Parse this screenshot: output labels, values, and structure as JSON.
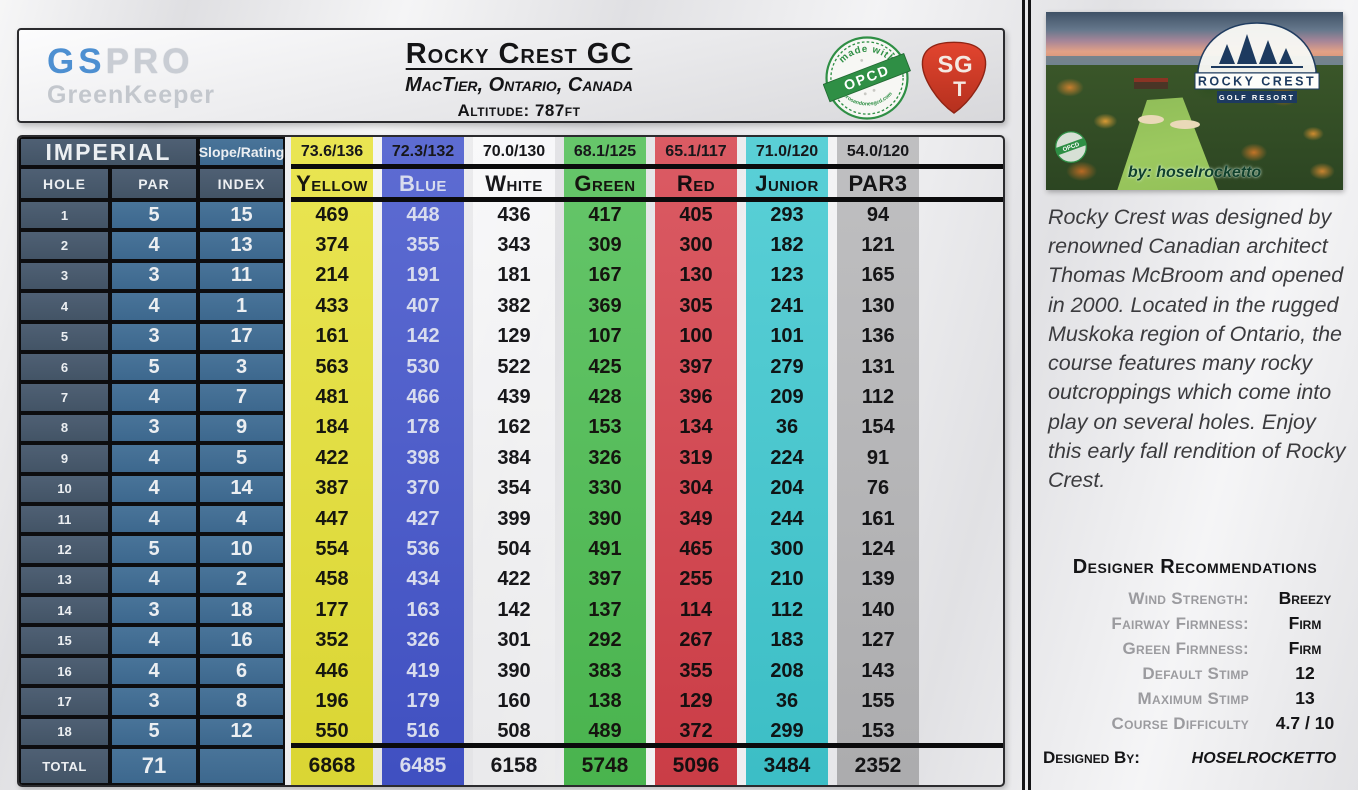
{
  "header": {
    "logo_gs": "GS",
    "logo_pro": "PRO",
    "logo_subtitle": "GreenKeeper",
    "course_name": "Rocky Crest GC",
    "location": "MacTier, Ontario, Canada",
    "altitude": "Altitude: 787ft",
    "opcd_badge": {
      "top": "made with",
      "label": "OPCD",
      "bottom": "zerosandonesgcd.com"
    },
    "sgt_badge": {
      "line1": "SG",
      "line2": "T"
    }
  },
  "scorecard": {
    "units_label": "IMPERIAL",
    "slope_rating_label": "Slope/Rating",
    "hole_label": "HOLE",
    "par_label": "PAR",
    "index_label": "INDEX",
    "total_label": "TOTAL",
    "total_par": "71",
    "tees": [
      {
        "name": "Yellow",
        "slope_rating": "73.6/136",
        "total": "6868",
        "bg": "#e6e136",
        "fg": "#17170f"
      },
      {
        "name": "Blue",
        "slope_rating": "72.3/132",
        "total": "6485",
        "bg": "#4354cb",
        "fg": "#d8dcee"
      },
      {
        "name": "White",
        "slope_rating": "70.0/130",
        "total": "6158",
        "bg": "rgba(251,251,252,0.78)",
        "fg": "#17171a"
      },
      {
        "name": "Green",
        "slope_rating": "68.1/125",
        "total": "5748",
        "bg": "#4dbd52",
        "fg": "#15150f"
      },
      {
        "name": "Red",
        "slope_rating": "65.1/117",
        "total": "5096",
        "bg": "#d5404a",
        "fg": "#160f10"
      },
      {
        "name": "Junior",
        "slope_rating": "71.0/120",
        "total": "3484",
        "bg": "#3fc8d0",
        "fg": "#0f1516"
      },
      {
        "name": "PAR3",
        "slope_rating": "54.0/120",
        "total": "2352",
        "bg": "#b5b5b7",
        "fg": "#141416"
      }
    ],
    "holes": [
      {
        "hole": "1",
        "par": "5",
        "index": "15",
        "yards": [
          "469",
          "448",
          "436",
          "417",
          "405",
          "293",
          "94"
        ]
      },
      {
        "hole": "2",
        "par": "4",
        "index": "13",
        "yards": [
          "374",
          "355",
          "343",
          "309",
          "300",
          "182",
          "121"
        ]
      },
      {
        "hole": "3",
        "par": "3",
        "index": "11",
        "yards": [
          "214",
          "191",
          "181",
          "167",
          "130",
          "123",
          "165"
        ]
      },
      {
        "hole": "4",
        "par": "4",
        "index": "1",
        "yards": [
          "433",
          "407",
          "382",
          "369",
          "305",
          "241",
          "130"
        ]
      },
      {
        "hole": "5",
        "par": "3",
        "index": "17",
        "yards": [
          "161",
          "142",
          "129",
          "107",
          "100",
          "101",
          "136"
        ]
      },
      {
        "hole": "6",
        "par": "5",
        "index": "3",
        "yards": [
          "563",
          "530",
          "522",
          "425",
          "397",
          "279",
          "131"
        ]
      },
      {
        "hole": "7",
        "par": "4",
        "index": "7",
        "yards": [
          "481",
          "466",
          "439",
          "428",
          "396",
          "209",
          "112"
        ]
      },
      {
        "hole": "8",
        "par": "3",
        "index": "9",
        "yards": [
          "184",
          "178",
          "162",
          "153",
          "134",
          "36",
          "154"
        ]
      },
      {
        "hole": "9",
        "par": "4",
        "index": "5",
        "yards": [
          "422",
          "398",
          "384",
          "326",
          "319",
          "224",
          "91"
        ]
      },
      {
        "hole": "10",
        "par": "4",
        "index": "14",
        "yards": [
          "387",
          "370",
          "354",
          "330",
          "304",
          "204",
          "76"
        ]
      },
      {
        "hole": "11",
        "par": "4",
        "index": "4",
        "yards": [
          "447",
          "427",
          "399",
          "390",
          "349",
          "244",
          "161"
        ]
      },
      {
        "hole": "12",
        "par": "5",
        "index": "10",
        "yards": [
          "554",
          "536",
          "504",
          "491",
          "465",
          "300",
          "124"
        ]
      },
      {
        "hole": "13",
        "par": "4",
        "index": "2",
        "yards": [
          "458",
          "434",
          "422",
          "397",
          "255",
          "210",
          "139"
        ]
      },
      {
        "hole": "14",
        "par": "3",
        "index": "18",
        "yards": [
          "177",
          "163",
          "142",
          "137",
          "114",
          "112",
          "140"
        ]
      },
      {
        "hole": "15",
        "par": "4",
        "index": "16",
        "yards": [
          "352",
          "326",
          "301",
          "292",
          "267",
          "183",
          "127"
        ]
      },
      {
        "hole": "16",
        "par": "4",
        "index": "6",
        "yards": [
          "446",
          "419",
          "390",
          "383",
          "355",
          "208",
          "143"
        ]
      },
      {
        "hole": "17",
        "par": "3",
        "index": "8",
        "yards": [
          "196",
          "179",
          "160",
          "138",
          "129",
          "36",
          "155"
        ]
      },
      {
        "hole": "18",
        "par": "5",
        "index": "12",
        "yards": [
          "550",
          "516",
          "508",
          "489",
          "372",
          "299",
          "153"
        ]
      }
    ]
  },
  "sidebar": {
    "photo": {
      "badge_title": "ROCKY CREST",
      "badge_subtitle": "GOLF RESORT",
      "credit": "by: hoselrocketto",
      "watermark": "OPCD"
    },
    "description": "Rocky Crest was designed by renowned Canadian architect Thomas McBroom and opened in 2000. Located in the rugged Muskoka region of Ontario, the course features many rocky outcroppings which come into play on several holes. Enjoy this early fall rendition of Rocky Crest.",
    "recommendations": {
      "title": "Designer Recommendations",
      "items": [
        {
          "label": "Wind Strength:",
          "value": "Breezy"
        },
        {
          "label": "Fairway Firmness:",
          "value": "Firm"
        },
        {
          "label": "Green Firmness:",
          "value": "Firm"
        },
        {
          "label": "Default Stimp",
          "value": "12"
        },
        {
          "label": "Maximum Stimp",
          "value": "13"
        },
        {
          "label": "Course Difficulty",
          "value": "4.7 / 10"
        }
      ]
    },
    "designed_by_label": "Designed By:",
    "designed_by_value": "HOSELROCKETTO"
  }
}
